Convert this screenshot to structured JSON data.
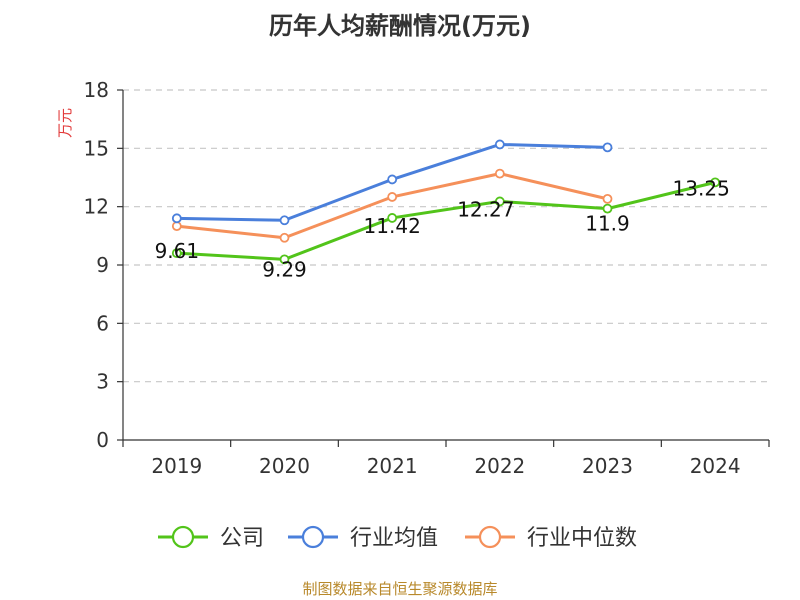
{
  "chart_data": {
    "type": "line",
    "title": "历年人均薪酬情况(万元)",
    "ylabel": "万元",
    "xlabel": "",
    "categories": [
      "2019",
      "2020",
      "2021",
      "2022",
      "2023",
      "2024"
    ],
    "ylim": [
      0,
      18
    ],
    "yticks": [
      0,
      3,
      6,
      9,
      12,
      15,
      18
    ],
    "grid": true,
    "legend_position": "bottom",
    "series": [
      {
        "name": "公司",
        "color": "#52c41a",
        "values": [
          9.61,
          9.29,
          11.42,
          12.27,
          11.9,
          13.25
        ],
        "labels": [
          "9.61",
          "9.29",
          "11.42",
          "12.27",
          "11.9",
          "13.25"
        ]
      },
      {
        "name": "行业均值",
        "color": "#4a7fdb",
        "values": [
          11.4,
          11.3,
          13.4,
          15.2,
          15.05,
          null
        ]
      },
      {
        "name": "行业中位数",
        "color": "#f5905a",
        "values": [
          11.0,
          10.4,
          12.5,
          13.7,
          12.4,
          null
        ]
      }
    ]
  },
  "footer": {
    "source": "制图数据来自恒生聚源数据库"
  }
}
